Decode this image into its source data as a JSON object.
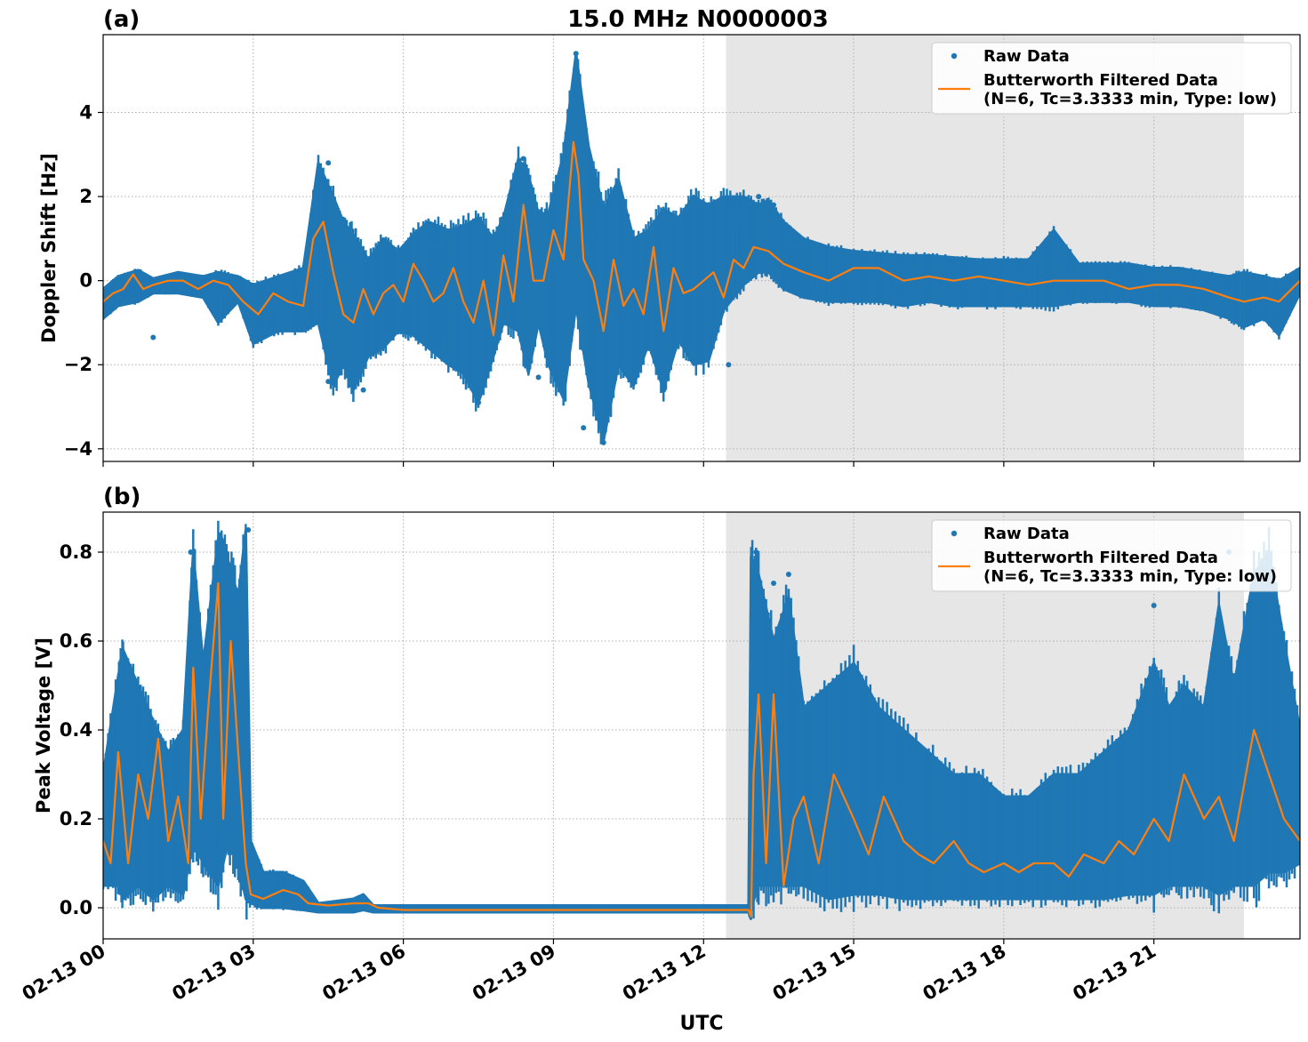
{
  "figure": {
    "title": "15.0 MHz N0000003",
    "xlabel": "UTC",
    "colors": {
      "raw": "#1f77b4",
      "filtered": "#ff7f0e",
      "shade": "#e6e6e6",
      "grid": "#b0b0b0"
    }
  },
  "chart_data": [
    {
      "type": "scatter",
      "panel_label": "(a)",
      "ylabel": "Doppler Shift [Hz]",
      "ylim": [
        -4.3,
        5.85
      ],
      "xlim_hours": [
        0,
        23.92
      ],
      "yticks": [
        -4,
        -2,
        0,
        2,
        4
      ],
      "yticklabels": [
        "−4",
        "−2",
        "0",
        "2",
        "4"
      ],
      "xticks_hours": [
        0,
        3,
        6,
        9,
        12,
        15,
        18,
        21
      ],
      "xticklabels": [
        "02-13 00",
        "02-13 03",
        "02-13 06",
        "02-13 09",
        "02-13 12",
        "02-13 15",
        "02-13 18",
        "02-13 21"
      ],
      "shaded_span_hours": [
        12.45,
        22.8
      ],
      "grid": true,
      "legend": {
        "placement": "top-right",
        "entries": [
          {
            "label": "Raw Data",
            "kind": "marker"
          },
          {
            "label": "Butterworth Filtered Data",
            "label2": "(N=6, Tc=3.3333 min, Type: low)",
            "kind": "line"
          }
        ]
      },
      "series": [
        {
          "name": "Raw Data",
          "kind": "band",
          "x": [
            0,
            0.3,
            0.7,
            1,
            1.5,
            2,
            2.3,
            2.7,
            3,
            3.5,
            4,
            4.3,
            4.6,
            4.8,
            5,
            5.3,
            5.6,
            5.9,
            6.2,
            6.5,
            6.9,
            7.2,
            7.5,
            7.8,
            8,
            8.3,
            8.5,
            8.7,
            8.9,
            9.2,
            9.45,
            9.7,
            10,
            10.3,
            10.6,
            10.9,
            11.2,
            11.5,
            11.8,
            12.1,
            12.4,
            12.8,
            13.1,
            13.3,
            13.6,
            14,
            14.5,
            15,
            15.5,
            16,
            16.5,
            17,
            17.5,
            18,
            18.5,
            19,
            19.5,
            20,
            20.5,
            21,
            21.5,
            22,
            22.5,
            22.8,
            23.2,
            23.5,
            23.92
          ],
          "y_high": [
            -0.2,
            0.1,
            0.25,
            0.05,
            0.2,
            0.1,
            0.2,
            0.1,
            -0.1,
            0.1,
            0.3,
            2.8,
            2,
            1.4,
            1.1,
            0.5,
            1.0,
            0.7,
            1.1,
            1.4,
            1.2,
            1.3,
            1.5,
            1.0,
            1.5,
            2.9,
            2.5,
            1.6,
            1.6,
            3.0,
            5.4,
            3.2,
            1.7,
            2.4,
            1.0,
            1.2,
            1.7,
            1.5,
            2.0,
            1.8,
            2.0,
            2.0,
            1.8,
            1.9,
            1.4,
            1.0,
            0.8,
            0.7,
            0.65,
            0.6,
            0.6,
            0.55,
            0.5,
            0.5,
            0.5,
            1.2,
            0.4,
            0.4,
            0.4,
            0.3,
            0.3,
            0.2,
            0.1,
            0.2,
            0.1,
            0.0,
            0.3
          ],
          "y_low": [
            -0.9,
            -0.6,
            -0.5,
            -0.3,
            -0.3,
            -0.4,
            -1.0,
            -0.5,
            -1.5,
            -1.2,
            -1.2,
            -1.0,
            -2.5,
            -2.0,
            -2.6,
            -1.8,
            -1.6,
            -1.2,
            -1.3,
            -1.6,
            -2.0,
            -2.2,
            -2.9,
            -1.8,
            -1.0,
            -1.2,
            -2.2,
            -1.0,
            -2.0,
            -2.8,
            -0.6,
            -2.4,
            -3.8,
            -2.0,
            -2.5,
            -1.5,
            -2.6,
            -1.4,
            -2.0,
            -1.9,
            -0.7,
            -0.1,
            0.2,
            0.2,
            -0.2,
            -0.4,
            -0.5,
            -0.5,
            -0.5,
            -0.6,
            -0.5,
            -0.6,
            -0.6,
            -0.6,
            -0.6,
            -0.6,
            -0.5,
            -0.5,
            -0.5,
            -0.6,
            -0.6,
            -0.7,
            -0.9,
            -1.1,
            -0.9,
            -1.3,
            -0.3
          ],
          "outliers": [
            [
              1.0,
              -1.35
            ],
            [
              4.5,
              -2.4
            ],
            [
              5.2,
              -2.6
            ],
            [
              7.5,
              -2.9
            ],
            [
              9.6,
              -3.5
            ],
            [
              10.0,
              -3.85
            ],
            [
              8.7,
              -2.3
            ],
            [
              9.45,
              5.4
            ],
            [
              4.5,
              2.8
            ],
            [
              8.4,
              2.9
            ],
            [
              13.1,
              2.0
            ],
            [
              13.4,
              1.8
            ],
            [
              19.0,
              1.1
            ],
            [
              11.2,
              -2.6
            ],
            [
              12.5,
              -2.0
            ]
          ]
        },
        {
          "name": "Butterworth Filtered Data",
          "kind": "line",
          "x": [
            0,
            0.2,
            0.4,
            0.6,
            0.8,
            1,
            1.3,
            1.6,
            1.9,
            2.2,
            2.5,
            2.8,
            3.1,
            3.4,
            3.7,
            4,
            4.2,
            4.4,
            4.6,
            4.8,
            5,
            5.2,
            5.4,
            5.6,
            5.8,
            6,
            6.2,
            6.4,
            6.6,
            6.8,
            7,
            7.2,
            7.4,
            7.6,
            7.8,
            8,
            8.2,
            8.4,
            8.6,
            8.8,
            9,
            9.2,
            9.4,
            9.5,
            9.6,
            9.8,
            10,
            10.2,
            10.4,
            10.6,
            10.8,
            11,
            11.2,
            11.4,
            11.6,
            11.8,
            12,
            12.2,
            12.4,
            12.6,
            12.8,
            13,
            13.3,
            13.6,
            14,
            14.5,
            15,
            15.5,
            16,
            16.5,
            17,
            17.5,
            18,
            18.5,
            19,
            19.5,
            20,
            20.5,
            21,
            21.5,
            22,
            22.5,
            22.8,
            23.2,
            23.5,
            23.92
          ],
          "y": [
            -0.5,
            -0.3,
            -0.2,
            0.15,
            -0.2,
            -0.1,
            0.0,
            0.0,
            -0.2,
            0.0,
            -0.1,
            -0.5,
            -0.8,
            -0.3,
            -0.5,
            -0.6,
            1.0,
            1.4,
            0.2,
            -0.8,
            -1.0,
            -0.2,
            -0.8,
            -0.3,
            -0.1,
            -0.5,
            0.4,
            0.0,
            -0.5,
            -0.3,
            0.3,
            -0.5,
            -1.0,
            0.0,
            -1.3,
            0.6,
            -0.5,
            1.8,
            0.0,
            0.0,
            1.2,
            0.5,
            3.3,
            2.5,
            0.5,
            0.0,
            -1.2,
            0.5,
            -0.6,
            -0.2,
            -0.8,
            0.8,
            -1.2,
            0.3,
            -0.3,
            -0.2,
            0.0,
            0.2,
            -0.4,
            0.5,
            0.3,
            0.8,
            0.7,
            0.4,
            0.2,
            0.0,
            0.3,
            0.3,
            0.0,
            0.1,
            0.0,
            0.1,
            0.0,
            -0.1,
            0.0,
            0.0,
            0.0,
            -0.2,
            -0.1,
            -0.1,
            -0.2,
            -0.4,
            -0.5,
            -0.4,
            -0.5,
            0.0
          ]
        }
      ]
    },
    {
      "type": "scatter",
      "panel_label": "(b)",
      "ylabel": "Peak Voltage [V]",
      "ylim": [
        -0.07,
        0.89
      ],
      "xlim_hours": [
        0,
        23.92
      ],
      "yticks": [
        0.0,
        0.2,
        0.4,
        0.6,
        0.8
      ],
      "yticklabels": [
        "0.0",
        "0.2",
        "0.4",
        "0.6",
        "0.8"
      ],
      "xticks_hours": [
        0,
        3,
        6,
        9,
        12,
        15,
        18,
        21
      ],
      "xticklabels": [
        "02-13 00",
        "02-13 03",
        "02-13 06",
        "02-13 09",
        "02-13 12",
        "02-13 15",
        "02-13 18",
        "02-13 21"
      ],
      "shaded_span_hours": [
        12.45,
        22.8
      ],
      "grid": true,
      "legend": {
        "placement": "top-right",
        "entries": [
          {
            "label": "Raw Data",
            "kind": "marker"
          },
          {
            "label": "Butterworth Filtered Data",
            "label2": "(N=6, Tc=3.3333 min, Type: low)",
            "kind": "line"
          }
        ]
      },
      "series": [
        {
          "name": "Raw Data",
          "kind": "band",
          "x": [
            0,
            0.3,
            0.4,
            0.7,
            1,
            1.3,
            1.6,
            1.8,
            2,
            2.3,
            2.5,
            2.7,
            2.85,
            2.95,
            3.2,
            3.6,
            4,
            4.3,
            5,
            5.2,
            5.4,
            6,
            8,
            10,
            12,
            12.9,
            12.95,
            13.1,
            13.4,
            13.7,
            14,
            14.5,
            15,
            15.5,
            16,
            16.5,
            17,
            17.5,
            18,
            18.5,
            19,
            19.5,
            20,
            20.5,
            21,
            21.3,
            21.6,
            22,
            22.3,
            22.6,
            23,
            23.3,
            23.6,
            23.92
          ],
          "y_high": [
            0.3,
            0.52,
            0.58,
            0.5,
            0.42,
            0.35,
            0.4,
            0.8,
            0.55,
            0.83,
            0.78,
            0.7,
            0.85,
            0.15,
            0.08,
            0.08,
            0.06,
            0.01,
            0.02,
            0.03,
            0.005,
            0.005,
            0.005,
            0.005,
            0.005,
            0.005,
            0.79,
            0.75,
            0.6,
            0.7,
            0.45,
            0.5,
            0.55,
            0.45,
            0.4,
            0.35,
            0.3,
            0.3,
            0.25,
            0.25,
            0.3,
            0.3,
            0.35,
            0.4,
            0.55,
            0.45,
            0.5,
            0.45,
            0.68,
            0.5,
            0.75,
            0.8,
            0.6,
            0.4
          ],
          "y_low": [
            0.05,
            0.05,
            0.02,
            0.05,
            0.02,
            0.05,
            0.03,
            0.15,
            0.1,
            0.05,
            0.15,
            0.1,
            0.02,
            0.01,
            0.0,
            0.0,
            -0.005,
            -0.01,
            -0.01,
            -0.005,
            -0.01,
            -0.01,
            -0.01,
            -0.01,
            -0.01,
            -0.01,
            0.0,
            0.05,
            0.05,
            0.05,
            0.05,
            0.02,
            0.03,
            0.03,
            0.02,
            0.02,
            0.02,
            0.02,
            0.02,
            0.02,
            0.02,
            0.02,
            0.02,
            0.03,
            0.03,
            0.05,
            0.05,
            0.05,
            0.03,
            0.05,
            0.05,
            0.08,
            0.08,
            0.1
          ],
          "outliers": [
            [
              1.75,
              0.8
            ],
            [
              2.35,
              0.83
            ],
            [
              2.9,
              0.85
            ],
            [
              13.05,
              0.8
            ],
            [
              13.4,
              0.73
            ],
            [
              13.7,
              0.75
            ],
            [
              22.5,
              0.8
            ],
            [
              23.2,
              0.78
            ],
            [
              21.0,
              0.68
            ]
          ]
        },
        {
          "name": "Butterworth Filtered Data",
          "kind": "line",
          "x": [
            0,
            0.15,
            0.3,
            0.5,
            0.7,
            0.9,
            1.1,
            1.3,
            1.5,
            1.7,
            1.8,
            1.95,
            2.1,
            2.3,
            2.4,
            2.55,
            2.7,
            2.85,
            2.95,
            3.2,
            3.6,
            3.9,
            4.1,
            4.5,
            5,
            5.3,
            5.5,
            6,
            8,
            10,
            12,
            12.9,
            12.95,
            13.0,
            13.1,
            13.25,
            13.4,
            13.6,
            13.8,
            14,
            14.3,
            14.6,
            15,
            15.3,
            15.6,
            16,
            16.3,
            16.6,
            17,
            17.3,
            17.6,
            18,
            18.3,
            18.6,
            19,
            19.3,
            19.6,
            20,
            20.3,
            20.6,
            21,
            21.3,
            21.6,
            22,
            22.3,
            22.6,
            23,
            23.3,
            23.6,
            23.92
          ],
          "y": [
            0.15,
            0.1,
            0.35,
            0.1,
            0.3,
            0.2,
            0.38,
            0.15,
            0.25,
            0.1,
            0.54,
            0.2,
            0.45,
            0.73,
            0.2,
            0.6,
            0.35,
            0.1,
            0.03,
            0.02,
            0.04,
            0.03,
            0.01,
            0.005,
            0.01,
            0.01,
            0.0,
            -0.005,
            -0.005,
            -0.005,
            -0.005,
            -0.005,
            -0.02,
            0.3,
            0.48,
            0.1,
            0.48,
            0.05,
            0.2,
            0.25,
            0.1,
            0.3,
            0.2,
            0.12,
            0.25,
            0.15,
            0.12,
            0.1,
            0.15,
            0.1,
            0.08,
            0.1,
            0.08,
            0.1,
            0.1,
            0.07,
            0.12,
            0.1,
            0.15,
            0.12,
            0.2,
            0.15,
            0.3,
            0.2,
            0.25,
            0.15,
            0.4,
            0.3,
            0.2,
            0.15
          ]
        }
      ]
    }
  ]
}
